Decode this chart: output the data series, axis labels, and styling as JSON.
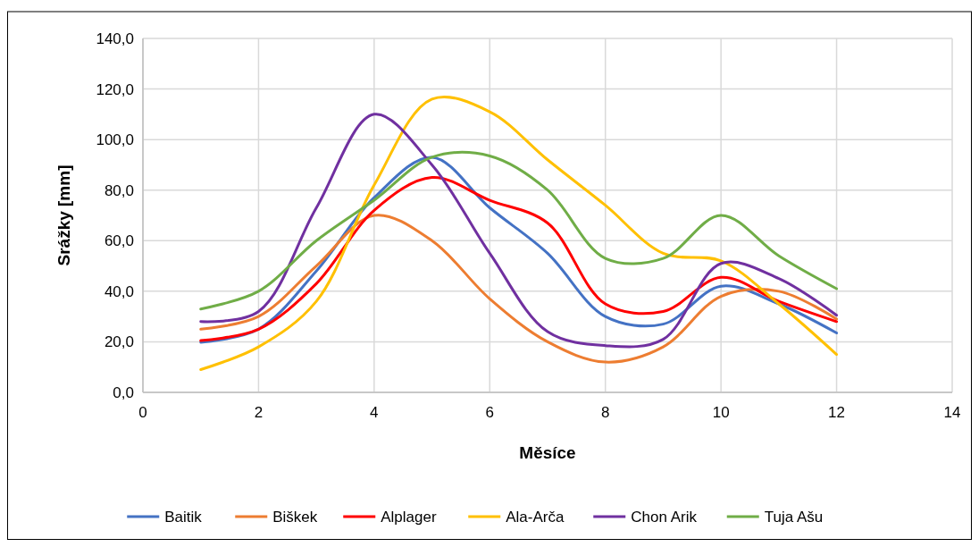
{
  "chart_data": {
    "type": "line",
    "xlabel": "Měsíce",
    "ylabel": "Srážky [mm]",
    "x": [
      1,
      2,
      3,
      4,
      5,
      6,
      7,
      8,
      9,
      10,
      11,
      12
    ],
    "series": [
      {
        "name": "Baitik",
        "color": "#4472c4",
        "values": [
          19.8,
          25,
          48,
          77,
          93,
          73,
          55,
          30,
          27,
          42,
          35,
          23.5
        ]
      },
      {
        "name": "Biškek",
        "color": "#ed7d31",
        "values": [
          25,
          30,
          50,
          70,
          60,
          37,
          20,
          12,
          18,
          38,
          40,
          29
        ]
      },
      {
        "name": "Alplager",
        "color": "#ff0000",
        "values": [
          20.5,
          25,
          43,
          72,
          85,
          76,
          67,
          35,
          32,
          45.5,
          36,
          28
        ]
      },
      {
        "name": "Ala-Arča",
        "color": "#ffc000",
        "values": [
          9,
          18,
          36,
          82,
          116,
          111,
          92,
          74,
          55,
          52,
          35,
          15
        ]
      },
      {
        "name": "Chon Arik",
        "color": "#7030a0",
        "values": [
          28,
          32,
          73,
          110,
          90,
          55,
          24,
          18.5,
          21,
          51,
          45,
          30.5
        ]
      },
      {
        "name": "Tuja Ašu",
        "color": "#70ad47",
        "values": [
          33,
          40,
          60,
          76,
          93,
          93.5,
          80,
          53,
          53,
          70,
          54,
          41
        ]
      }
    ],
    "xlim": [
      0,
      14
    ],
    "xticks": [
      0,
      2,
      4,
      6,
      8,
      10,
      12,
      14
    ],
    "ylim": [
      0,
      140
    ],
    "yticks": [
      {
        "value": 0,
        "label": "0,0"
      },
      {
        "value": 20,
        "label": "20,0"
      },
      {
        "value": 40,
        "label": "40,0"
      },
      {
        "value": 60,
        "label": "60,0"
      },
      {
        "value": 80,
        "label": "80,0"
      },
      {
        "value": 100,
        "label": "100,0"
      },
      {
        "value": 120,
        "label": "120,0"
      },
      {
        "value": 140,
        "label": "140,0"
      }
    ],
    "grid": true,
    "legend": "bottom",
    "marker": "none",
    "line_style": "solid"
  }
}
